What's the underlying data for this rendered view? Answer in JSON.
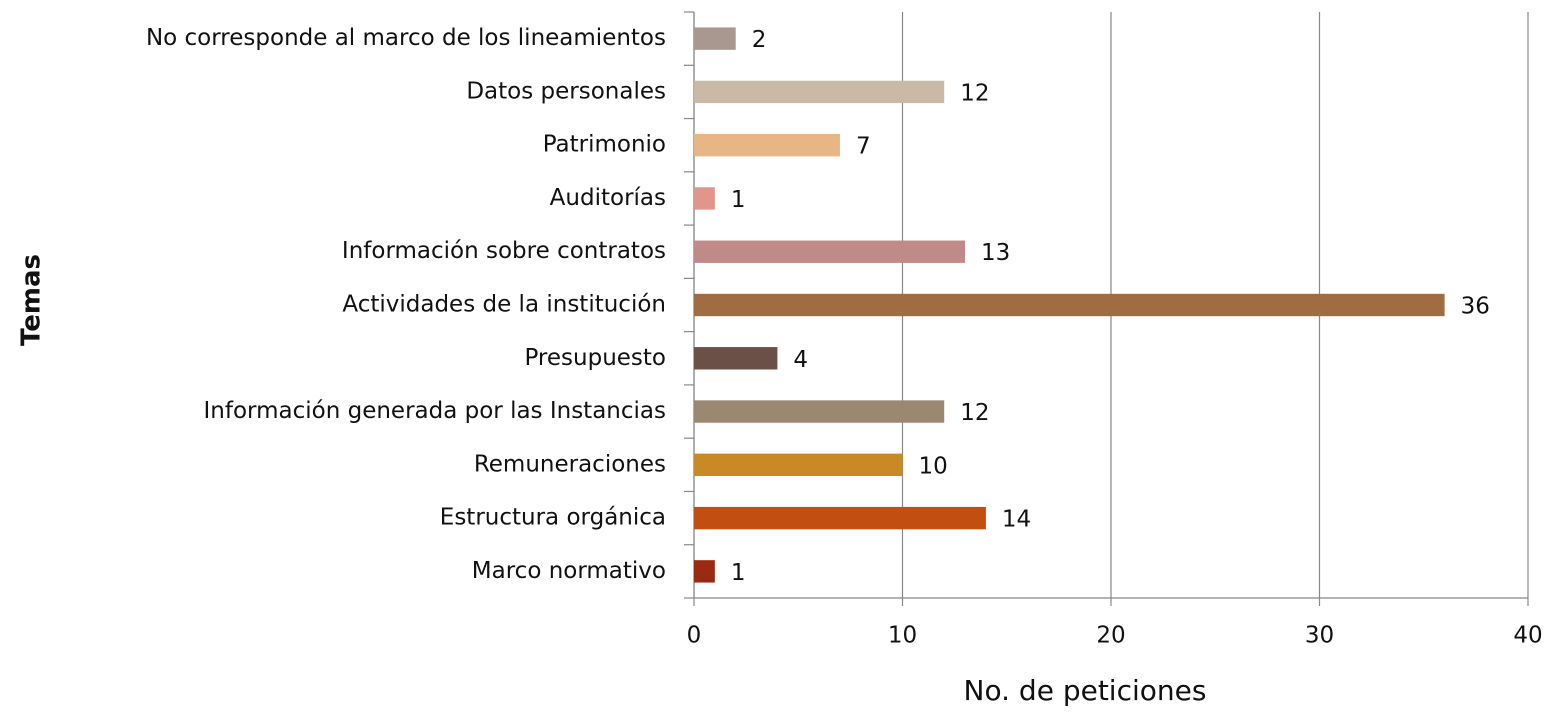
{
  "chart_data": {
    "type": "barh",
    "xlabel": "No. de peticiones",
    "ylabel": "Temas",
    "categories": [
      "No corresponde al marco de los lineamientos",
      "Datos personales",
      "Patrimonio",
      "Auditorías",
      "Información sobre contratos",
      "Actividades de la institución",
      "Presupuesto",
      "Información generada por las Instancias",
      "Remuneraciones",
      "Estructura orgánica",
      "Marco normativo"
    ],
    "values": [
      2,
      12,
      7,
      1,
      13,
      36,
      4,
      12,
      10,
      14,
      1
    ],
    "colors": [
      "#a89890",
      "#c9b9a6",
      "#e8b585",
      "#e0968a",
      "#c08a88",
      "#a06d42",
      "#6b5048",
      "#9a8870",
      "#c98a25",
      "#c24e12",
      "#982b12"
    ],
    "xlim": [
      0,
      40
    ],
    "xticks": [
      0,
      10,
      20,
      30,
      40
    ],
    "grid": true
  }
}
